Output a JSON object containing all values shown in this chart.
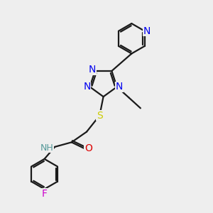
{
  "bg_color": "#eeeeee",
  "bond_color": "#1a1a1a",
  "N_color": "#0000ee",
  "O_color": "#dd0000",
  "S_color": "#cccc00",
  "F_color": "#cc00cc",
  "NH_color": "#559999",
  "font_size": 10,
  "fig_size": [
    3.0,
    3.0
  ],
  "dpi": 100,
  "xlim": [
    0,
    10
  ],
  "ylim": [
    0,
    10
  ]
}
